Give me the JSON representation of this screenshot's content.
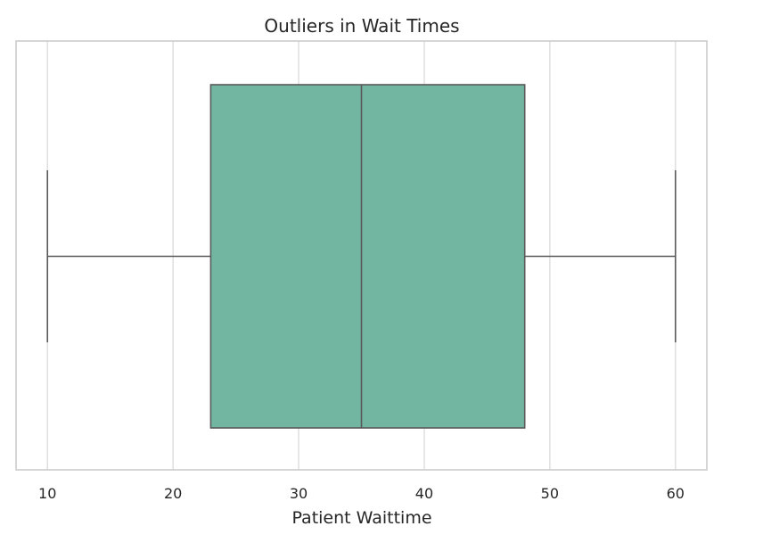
{
  "chart_data": {
    "type": "box",
    "title": "Outliers in Wait Times",
    "xlabel": "Patient Waittime",
    "ylabel": "",
    "xlim": [
      7.5,
      62.5
    ],
    "xticks": [
      10,
      20,
      30,
      40,
      50,
      60
    ],
    "grid": true,
    "orientation": "horizontal",
    "box": {
      "min": 10,
      "q1": 23,
      "median": 35,
      "q3": 48,
      "max": 60,
      "color": "#72b6a1",
      "line_color": "#595959"
    }
  }
}
